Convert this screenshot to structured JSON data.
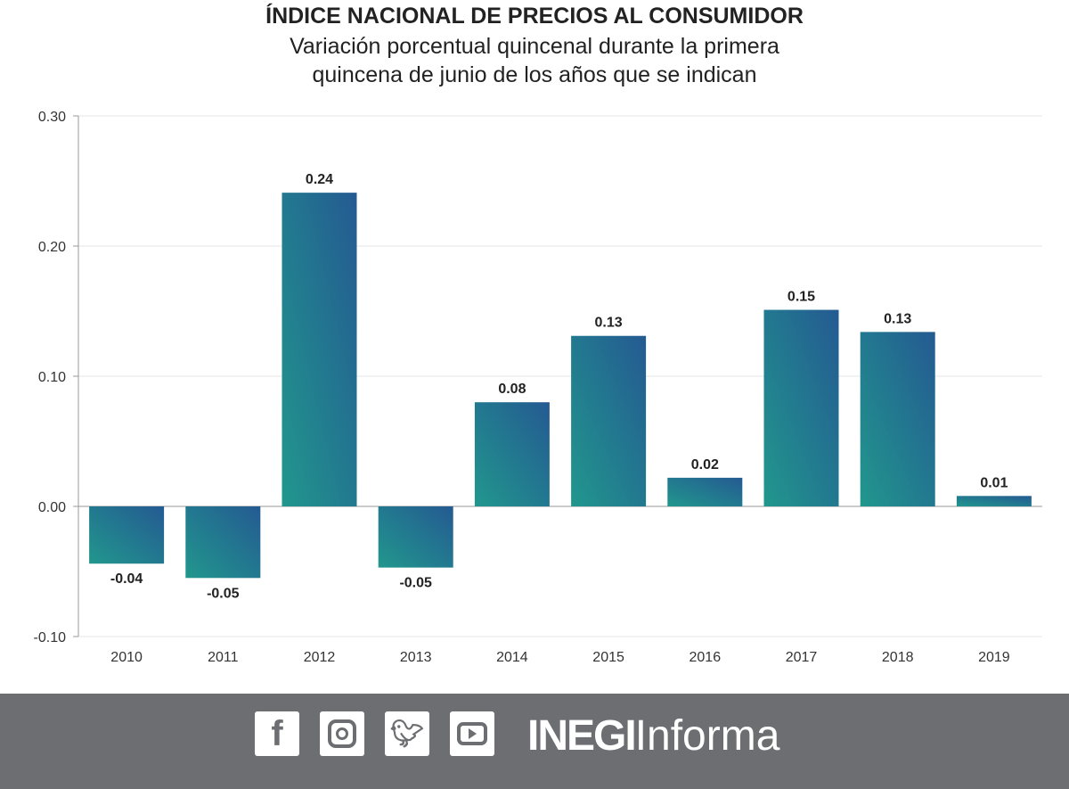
{
  "chart_data": {
    "type": "bar",
    "title": "ÍNDICE NACIONAL DE PRECIOS AL CONSUMIDOR",
    "subtitle": "Variación porcentual quincenal durante la primera quincena de junio de los años que se indican",
    "categories": [
      "2010",
      "2011",
      "2012",
      "2013",
      "2014",
      "2015",
      "2016",
      "2017",
      "2018",
      "2019"
    ],
    "values": [
      -0.044,
      -0.055,
      0.241,
      -0.047,
      0.08,
      0.131,
      0.022,
      0.151,
      0.134,
      0.008
    ],
    "labels": [
      "-0.04",
      "-0.05",
      "0.24",
      "-0.05",
      "0.08",
      "0.13",
      "0.02",
      "0.15",
      "0.13",
      "0.01"
    ],
    "ylim": [
      -0.1,
      0.3
    ],
    "yticks": [
      "-0.10",
      "0.00",
      "0.10",
      "0.20",
      "0.30"
    ],
    "ytick_values": [
      -0.1,
      0,
      0.1,
      0.2,
      0.3
    ],
    "xlabel": "",
    "ylabel": "",
    "grid": true,
    "colors": {
      "top": "#245a92",
      "bottom": "#21978d"
    }
  },
  "footer": {
    "brand_bold": "INEGI",
    "brand_light": "Informa",
    "icons": [
      "facebook-icon",
      "instagram-icon",
      "twitter-icon",
      "youtube-icon"
    ]
  }
}
